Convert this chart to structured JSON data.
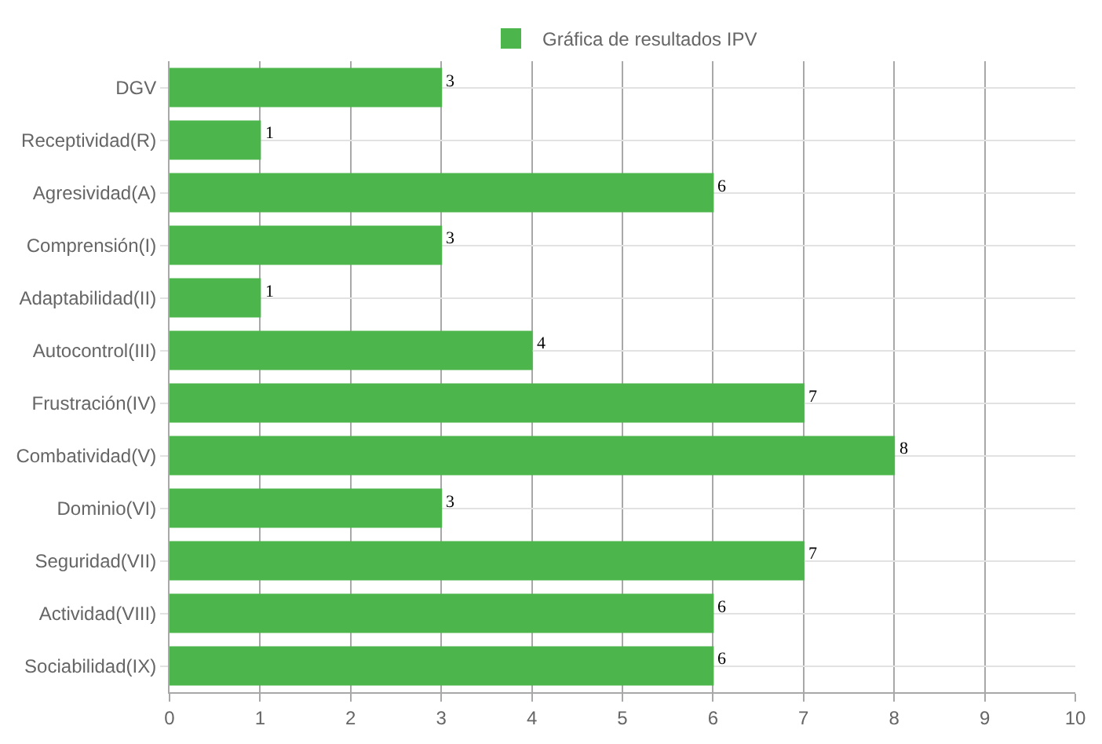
{
  "chart_data": {
    "type": "bar",
    "orientation": "horizontal",
    "categories": [
      "DGV",
      "Receptividad(R)",
      "Agresividad(A)",
      "Comprensión(I)",
      "Adaptabilidad(II)",
      "Autocontrol(III)",
      "Frustración(IV)",
      "Combatividad(V)",
      "Dominio(VI)",
      "Seguridad(VII)",
      "Actividad(VIII)",
      "Sociabilidad(IX)"
    ],
    "series": [
      {
        "name": "Gráfica de resultados IPV",
        "color": "#4cb54c",
        "values": [
          3,
          1,
          6,
          3,
          1,
          4,
          7,
          8,
          3,
          7,
          6,
          6
        ]
      }
    ],
    "xlim": [
      0,
      10
    ],
    "xticks": [
      0,
      1,
      2,
      3,
      4,
      5,
      6,
      7,
      8,
      9,
      10
    ],
    "grid": true,
    "legend": "top",
    "data_labels": true
  }
}
